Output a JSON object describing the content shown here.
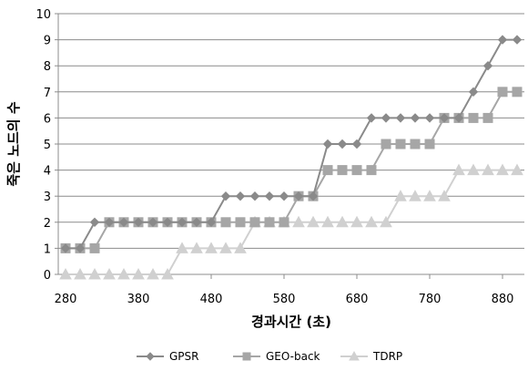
{
  "chart_data": {
    "type": "line",
    "title": "",
    "xlabel": "경과시간 (초)",
    "ylabel": "죽은 노드의 수",
    "xlim": [
      270,
      910
    ],
    "ylim": [
      0,
      10
    ],
    "xticks": [
      280,
      380,
      480,
      580,
      680,
      780,
      880
    ],
    "yticks": [
      0,
      1,
      2,
      3,
      4,
      5,
      6,
      7,
      8,
      9,
      10
    ],
    "grid": "horizontal",
    "legend_position": "bottom",
    "series": [
      {
        "name": "GPSR",
        "marker": "diamond",
        "color": "#8a8a8a",
        "points": [
          [
            280,
            1
          ],
          [
            300,
            1
          ],
          [
            320,
            2
          ],
          [
            340,
            2
          ],
          [
            360,
            2
          ],
          [
            380,
            2
          ],
          [
            400,
            2
          ],
          [
            420,
            2
          ],
          [
            440,
            2
          ],
          [
            460,
            2
          ],
          [
            480,
            2
          ],
          [
            500,
            3
          ],
          [
            520,
            3
          ],
          [
            540,
            3
          ],
          [
            560,
            3
          ],
          [
            580,
            3
          ],
          [
            600,
            3
          ],
          [
            620,
            3
          ],
          [
            640,
            5
          ],
          [
            660,
            5
          ],
          [
            680,
            5
          ],
          [
            700,
            6
          ],
          [
            720,
            6
          ],
          [
            740,
            6
          ],
          [
            760,
            6
          ],
          [
            780,
            6
          ],
          [
            800,
            6
          ],
          [
            820,
            6
          ],
          [
            840,
            7
          ],
          [
            860,
            8
          ],
          [
            880,
            9
          ],
          [
            900,
            9
          ]
        ]
      },
      {
        "name": "GEO-back",
        "marker": "square",
        "color": "#a6a6a6",
        "points": [
          [
            280,
            1
          ],
          [
            300,
            1
          ],
          [
            320,
            1
          ],
          [
            340,
            2
          ],
          [
            360,
            2
          ],
          [
            380,
            2
          ],
          [
            400,
            2
          ],
          [
            420,
            2
          ],
          [
            440,
            2
          ],
          [
            460,
            2
          ],
          [
            480,
            2
          ],
          [
            500,
            2
          ],
          [
            520,
            2
          ],
          [
            540,
            2
          ],
          [
            560,
            2
          ],
          [
            580,
            2
          ],
          [
            600,
            3
          ],
          [
            620,
            3
          ],
          [
            640,
            4
          ],
          [
            660,
            4
          ],
          [
            680,
            4
          ],
          [
            700,
            4
          ],
          [
            720,
            5
          ],
          [
            740,
            5
          ],
          [
            760,
            5
          ],
          [
            780,
            5
          ],
          [
            800,
            6
          ],
          [
            820,
            6
          ],
          [
            840,
            6
          ],
          [
            860,
            6
          ],
          [
            880,
            7
          ],
          [
            900,
            7
          ]
        ]
      },
      {
        "name": "TDRP",
        "marker": "triangle",
        "color": "#d0d0d0",
        "points": [
          [
            280,
            0
          ],
          [
            300,
            0
          ],
          [
            320,
            0
          ],
          [
            340,
            0
          ],
          [
            360,
            0
          ],
          [
            380,
            0
          ],
          [
            400,
            0
          ],
          [
            420,
            0
          ],
          [
            440,
            1
          ],
          [
            460,
            1
          ],
          [
            480,
            1
          ],
          [
            500,
            1
          ],
          [
            520,
            1
          ],
          [
            540,
            2
          ],
          [
            560,
            2
          ],
          [
            580,
            2
          ],
          [
            600,
            2
          ],
          [
            620,
            2
          ],
          [
            640,
            2
          ],
          [
            660,
            2
          ],
          [
            680,
            2
          ],
          [
            700,
            2
          ],
          [
            720,
            2
          ],
          [
            740,
            3
          ],
          [
            760,
            3
          ],
          [
            780,
            3
          ],
          [
            800,
            3
          ],
          [
            820,
            4
          ],
          [
            840,
            4
          ],
          [
            860,
            4
          ],
          [
            880,
            4
          ],
          [
            900,
            4
          ]
        ]
      }
    ]
  }
}
